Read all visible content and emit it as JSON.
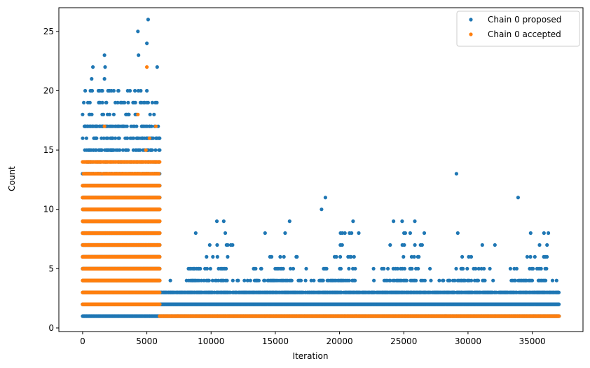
{
  "chart_data": {
    "type": "scatter",
    "title": "",
    "xlabel": "Iteration",
    "ylabel": "Count",
    "xlim": [
      -1850,
      38950
    ],
    "ylim": [
      -0.3,
      27.0
    ],
    "x_ticks": [
      0,
      5000,
      10000,
      15000,
      20000,
      25000,
      30000,
      35000
    ],
    "y_ticks": [
      0,
      5,
      10,
      15,
      20,
      25
    ],
    "grid": false,
    "legend_position": "top-right",
    "series": [
      {
        "name": "Chain 0 proposed",
        "color": "#1f77b4",
        "segments": [
          {
            "x_range": [
              0,
              6000
            ],
            "levels": [
              1,
              2,
              3,
              4,
              5,
              6,
              7,
              8,
              9,
              10,
              11,
              12,
              13,
              14,
              15,
              16,
              17,
              18,
              19,
              20
            ],
            "density": "continuous"
          },
          {
            "x_range": [
              6000,
              37100
            ],
            "levels": [
              1,
              2
            ],
            "density": "continuous"
          },
          {
            "x_range": [
              6000,
              37100
            ],
            "levels": [
              3
            ],
            "density": "dense"
          },
          {
            "x_range": [
              6500,
              37000
            ],
            "levels": [
              4,
              5
            ],
            "density": "clustered"
          },
          {
            "x_range": [
              7000,
              36500
            ],
            "levels": [
              6,
              7,
              8,
              9
            ],
            "density": "sparse"
          }
        ],
        "peaks": [
          {
            "x": 5100,
            "y": 26
          },
          {
            "x": 4300,
            "y": 25
          },
          {
            "x": 5000,
            "y": 24
          },
          {
            "x": 4350,
            "y": 23
          },
          {
            "x": 1700,
            "y": 23
          },
          {
            "x": 800,
            "y": 22
          },
          {
            "x": 1750,
            "y": 22
          },
          {
            "x": 5800,
            "y": 22
          },
          {
            "x": 700,
            "y": 21
          },
          {
            "x": 1700,
            "y": 21
          },
          {
            "x": 29100,
            "y": 13
          },
          {
            "x": 33900,
            "y": 11
          },
          {
            "x": 18900,
            "y": 11
          },
          {
            "x": 18600,
            "y": 10
          },
          {
            "x": 24200,
            "y": 9
          },
          {
            "x": 29200,
            "y": 8
          },
          {
            "x": 14200,
            "y": 8
          },
          {
            "x": 8800,
            "y": 8
          }
        ]
      },
      {
        "name": "Chain 0 accepted",
        "color": "#ff7f0e",
        "segments": [
          {
            "x_range": [
              0,
              6000
            ],
            "levels": [
              2,
              3,
              4,
              5,
              6,
              7,
              8,
              9,
              10,
              11,
              12,
              13,
              14
            ],
            "density": "continuous"
          },
          {
            "x_range": [
              0,
              6000
            ],
            "levels": [
              1,
              15,
              16,
              17
            ],
            "density": "sparse"
          },
          {
            "x_range": [
              6000,
              37100
            ],
            "levels": [
              1
            ],
            "density": "continuous"
          }
        ],
        "peaks": [
          {
            "x": 5000,
            "y": 22
          },
          {
            "x": 1700,
            "y": 17
          },
          {
            "x": 5700,
            "y": 17
          },
          {
            "x": 4300,
            "y": 18
          },
          {
            "x": 5200,
            "y": 16
          }
        ]
      }
    ]
  }
}
